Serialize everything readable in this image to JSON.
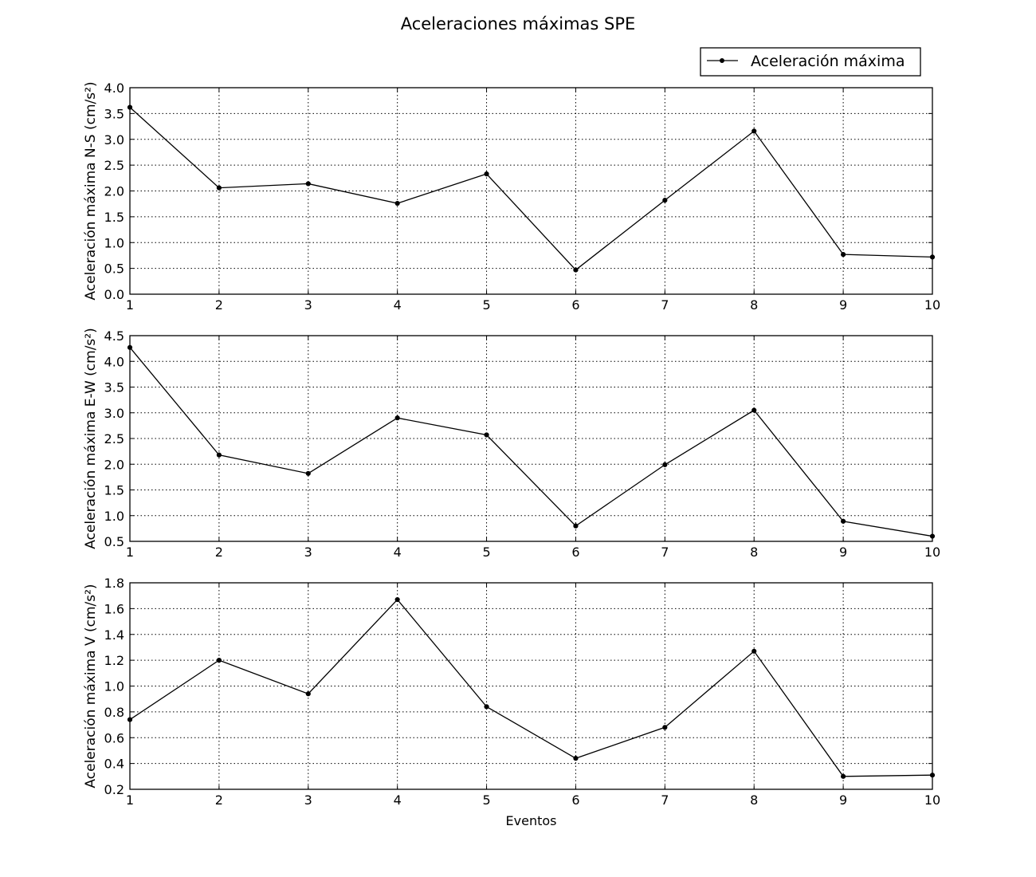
{
  "chart_data": [
    {
      "type": "line",
      "title": "Aceleraciones máximas SPE",
      "xlabel": "",
      "ylabel": "Aceleración máxima N-S (cm/s²)",
      "x": [
        1,
        2,
        3,
        4,
        5,
        6,
        7,
        8,
        9,
        10
      ],
      "xlim": [
        1,
        10
      ],
      "ylim": [
        0.0,
        4.0
      ],
      "yticks": [
        "0.0",
        "0.5",
        "1.0",
        "1.5",
        "2.0",
        "2.5",
        "3.0",
        "3.5",
        "4.0"
      ],
      "xticks": [
        "1",
        "2",
        "3",
        "4",
        "5",
        "6",
        "7",
        "8",
        "9",
        "10"
      ],
      "grid": true,
      "legend": "top-right",
      "series": [
        {
          "name": "Aceleración máxima",
          "values": [
            3.62,
            2.06,
            2.14,
            1.76,
            2.33,
            0.47,
            1.82,
            3.16,
            0.77,
            0.72
          ]
        }
      ]
    },
    {
      "type": "line",
      "xlabel": "",
      "ylabel": "Aceleración máxima E-W (cm/s²)",
      "x": [
        1,
        2,
        3,
        4,
        5,
        6,
        7,
        8,
        9,
        10
      ],
      "xlim": [
        1,
        10
      ],
      "ylim": [
        0.5,
        4.5
      ],
      "yticks": [
        "0.5",
        "1.0",
        "1.5",
        "2.0",
        "2.5",
        "3.0",
        "3.5",
        "4.0",
        "4.5"
      ],
      "xticks": [
        "1",
        "2",
        "3",
        "4",
        "5",
        "6",
        "7",
        "8",
        "9",
        "10"
      ],
      "grid": true,
      "series": [
        {
          "name": "Aceleración máxima",
          "values": [
            4.27,
            2.18,
            1.82,
            2.9,
            2.57,
            0.8,
            1.99,
            3.05,
            0.89,
            0.6
          ]
        }
      ]
    },
    {
      "type": "line",
      "xlabel": "Eventos",
      "ylabel": "Aceleración máxima V (cm/s²)",
      "x": [
        1,
        2,
        3,
        4,
        5,
        6,
        7,
        8,
        9,
        10
      ],
      "xlim": [
        1,
        10
      ],
      "ylim": [
        0.2,
        1.8
      ],
      "yticks": [
        "0.2",
        "0.4",
        "0.6",
        "0.8",
        "1.0",
        "1.2",
        "1.4",
        "1.6",
        "1.8"
      ],
      "xticks": [
        "1",
        "2",
        "3",
        "4",
        "5",
        "6",
        "7",
        "8",
        "9",
        "10"
      ],
      "grid": true,
      "series": [
        {
          "name": "Aceleración máxima",
          "values": [
            0.74,
            1.2,
            0.94,
            1.67,
            0.84,
            0.44,
            0.68,
            1.27,
            0.3,
            0.31
          ]
        }
      ]
    }
  ]
}
